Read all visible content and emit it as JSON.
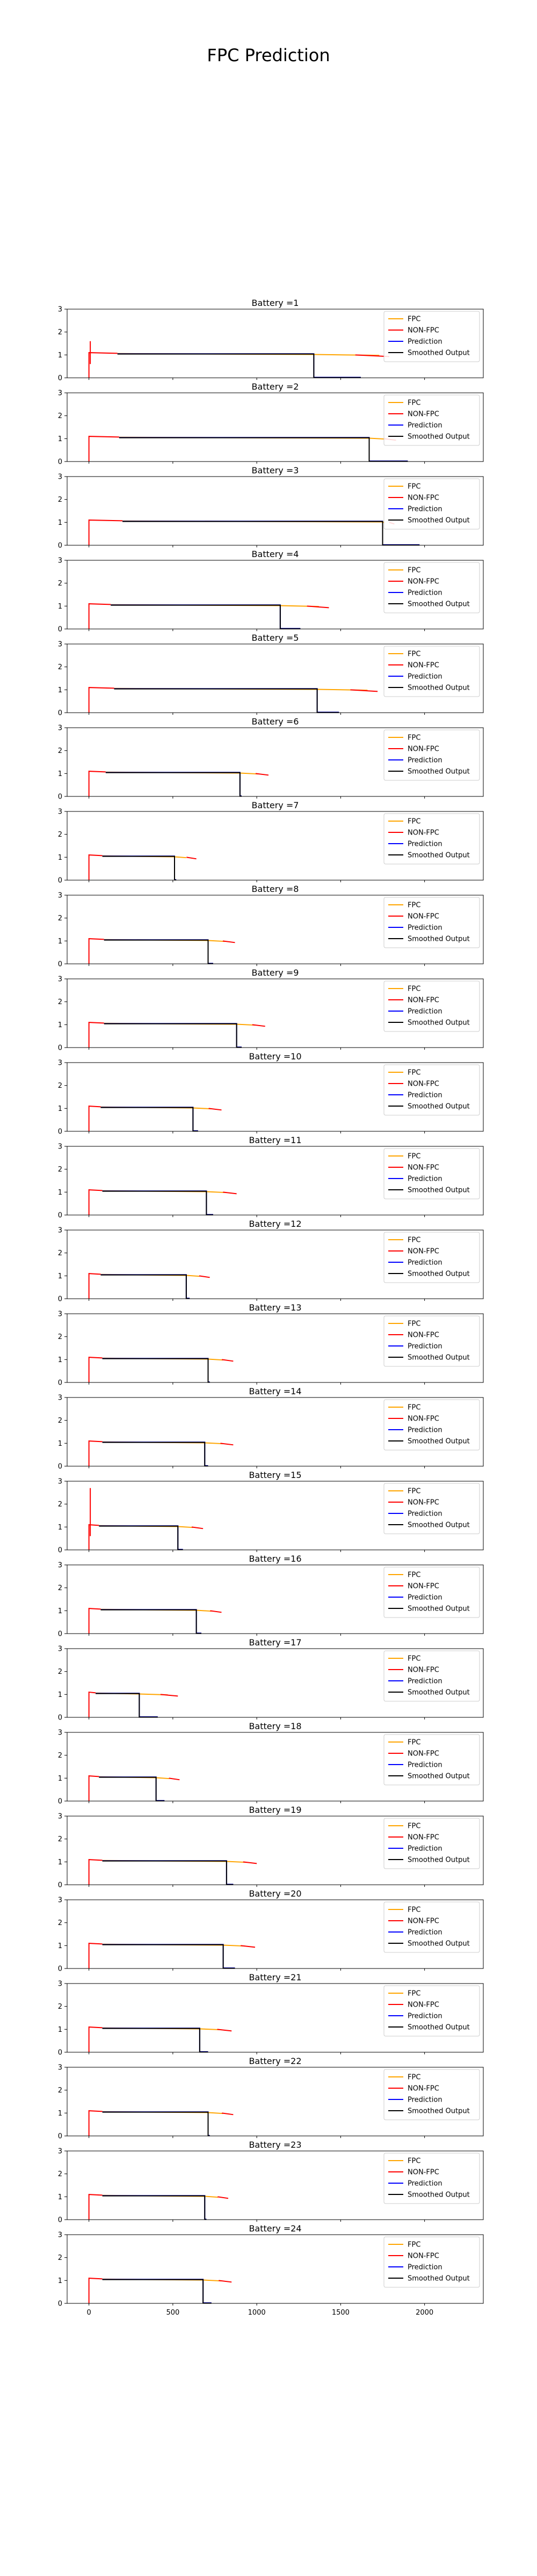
{
  "figure": {
    "suptitle": "FPC Prediction",
    "legend_labels": [
      "FPC",
      "NON-FPC",
      "Prediction",
      "Smoothed Output"
    ],
    "colors": {
      "fpc": "#FFA500",
      "nonfpc": "#FF0000",
      "prediction": "#0000FF",
      "smoothed": "#000000"
    }
  },
  "chart_data": {
    "type": "line",
    "subplot_count": 24,
    "shared_x": true,
    "xlim": [
      -130,
      2350
    ],
    "ylim": [
      0,
      3
    ],
    "xticks": [
      0,
      500,
      1000,
      1500,
      2000
    ],
    "yticks": [
      0,
      1,
      2,
      3
    ],
    "legend_position": "upper right",
    "series_names": [
      "FPC",
      "NON-FPC",
      "Prediction",
      "Smoothed Output"
    ],
    "panels": [
      {
        "title": "Battery =1",
        "fpc_start": 170,
        "end": 1790,
        "switch": 1340,
        "pred_end": 1620,
        "spike": 1.6
      },
      {
        "title": "Battery =2",
        "fpc_start": 180,
        "end": 1830,
        "switch": 1670,
        "pred_end": 1900,
        "spike": null
      },
      {
        "title": "Battery =3",
        "fpc_start": 200,
        "end": 1820,
        "switch": 1750,
        "pred_end": 1970,
        "spike": null
      },
      {
        "title": "Battery =4",
        "fpc_start": 130,
        "end": 1430,
        "switch": 1140,
        "pred_end": 1260,
        "spike": null
      },
      {
        "title": "Battery =5",
        "fpc_start": 150,
        "end": 1720,
        "switch": 1360,
        "pred_end": 1490,
        "spike": null
      },
      {
        "title": "Battery =6",
        "fpc_start": 100,
        "end": 1070,
        "switch": 900,
        "pred_end": 910,
        "spike": null
      },
      {
        "title": "Battery =7",
        "fpc_start": 80,
        "end": 640,
        "switch": 510,
        "pred_end": 520,
        "spike": null
      },
      {
        "title": "Battery =8",
        "fpc_start": 90,
        "end": 870,
        "switch": 710,
        "pred_end": 740,
        "spike": null
      },
      {
        "title": "Battery =9",
        "fpc_start": 90,
        "end": 1050,
        "switch": 880,
        "pred_end": 910,
        "spike": null
      },
      {
        "title": "Battery =10",
        "fpc_start": 70,
        "end": 790,
        "switch": 620,
        "pred_end": 650,
        "spike": null
      },
      {
        "title": "Battery =11",
        "fpc_start": 80,
        "end": 880,
        "switch": 700,
        "pred_end": 740,
        "spike": null
      },
      {
        "title": "Battery =12",
        "fpc_start": 70,
        "end": 720,
        "switch": 580,
        "pred_end": 600,
        "spike": null
      },
      {
        "title": "Battery =13",
        "fpc_start": 80,
        "end": 860,
        "switch": 710,
        "pred_end": 720,
        "spike": null
      },
      {
        "title": "Battery =14",
        "fpc_start": 80,
        "end": 860,
        "switch": 690,
        "pred_end": 710,
        "spike": null
      },
      {
        "title": "Battery =15",
        "fpc_start": 60,
        "end": 680,
        "switch": 530,
        "pred_end": 560,
        "spike": 2.7
      },
      {
        "title": "Battery =16",
        "fpc_start": 70,
        "end": 790,
        "switch": 640,
        "pred_end": 670,
        "spike": null
      },
      {
        "title": "Battery =17",
        "fpc_start": 40,
        "end": 530,
        "switch": 300,
        "pred_end": 410,
        "spike": null
      },
      {
        "title": "Battery =18",
        "fpc_start": 60,
        "end": 540,
        "switch": 400,
        "pred_end": 450,
        "spike": null
      },
      {
        "title": "Battery =19",
        "fpc_start": 80,
        "end": 1000,
        "switch": 820,
        "pred_end": 860,
        "spike": null
      },
      {
        "title": "Battery =20",
        "fpc_start": 80,
        "end": 990,
        "switch": 800,
        "pred_end": 870,
        "spike": null
      },
      {
        "title": "Battery =21",
        "fpc_start": 80,
        "end": 850,
        "switch": 660,
        "pred_end": 710,
        "spike": null
      },
      {
        "title": "Battery =22",
        "fpc_start": 80,
        "end": 860,
        "switch": 710,
        "pred_end": 720,
        "spike": null
      },
      {
        "title": "Battery =23",
        "fpc_start": 80,
        "end": 830,
        "switch": 690,
        "pred_end": 700,
        "spike": null
      },
      {
        "title": "Battery =24",
        "fpc_start": 80,
        "end": 850,
        "switch": 680,
        "pred_end": 730,
        "spike": null
      }
    ]
  }
}
